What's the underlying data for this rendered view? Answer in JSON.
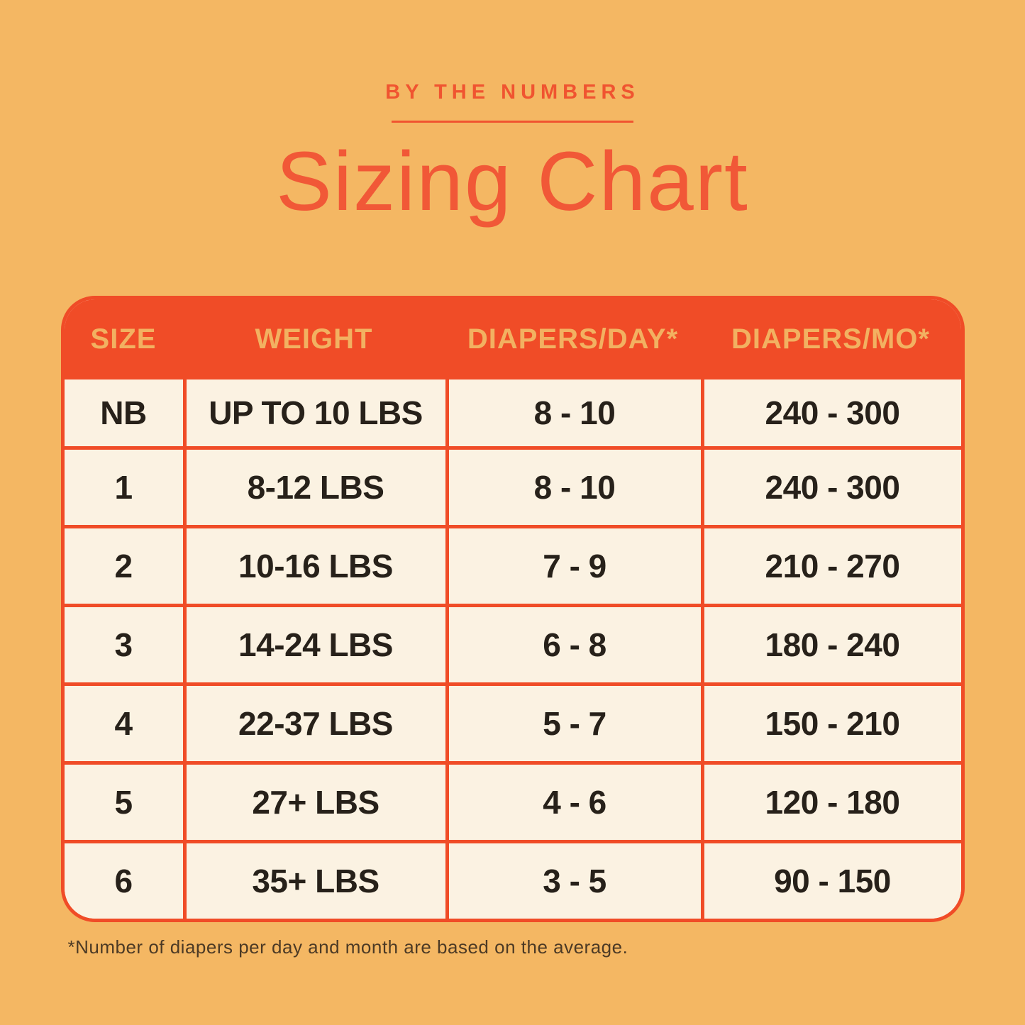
{
  "chart_data": {
    "type": "table",
    "eyebrow": "BY THE NUMBERS",
    "title": "Sizing Chart",
    "columns": [
      "SIZE",
      "WEIGHT",
      "DIAPERS/DAY*",
      "DIAPERS/MO*"
    ],
    "rows": [
      [
        "NB",
        "UP TO 10 LBS",
        "8 - 10",
        "240 - 300"
      ],
      [
        "1",
        "8-12 LBS",
        "8 - 10",
        "240 - 300"
      ],
      [
        "2",
        "10-16 LBS",
        "7 - 9",
        "210 - 270"
      ],
      [
        "3",
        "14-24 LBS",
        "6 - 8",
        "180 - 240"
      ],
      [
        "4",
        "22-37 LBS",
        "5 - 7",
        "150 - 210"
      ],
      [
        "5",
        "27+ LBS",
        "4 - 6",
        "120 - 180"
      ],
      [
        "6",
        "35+ LBS",
        "3 - 5",
        "90 - 150"
      ]
    ],
    "footnote": "*Number of diapers per day and month are based on the average.",
    "layout": {
      "legend": "none",
      "grid": "on"
    }
  },
  "colors": {
    "background": "#F4B763",
    "accent_text": "#F15837",
    "eyebrow_text": "#F05430",
    "table_red": "#F04C27",
    "header_label_gold": "#F2B161",
    "cell_background_cream": "#FBF2E2",
    "cell_text": "#27211A",
    "footnote_text": "#4C3A25"
  }
}
